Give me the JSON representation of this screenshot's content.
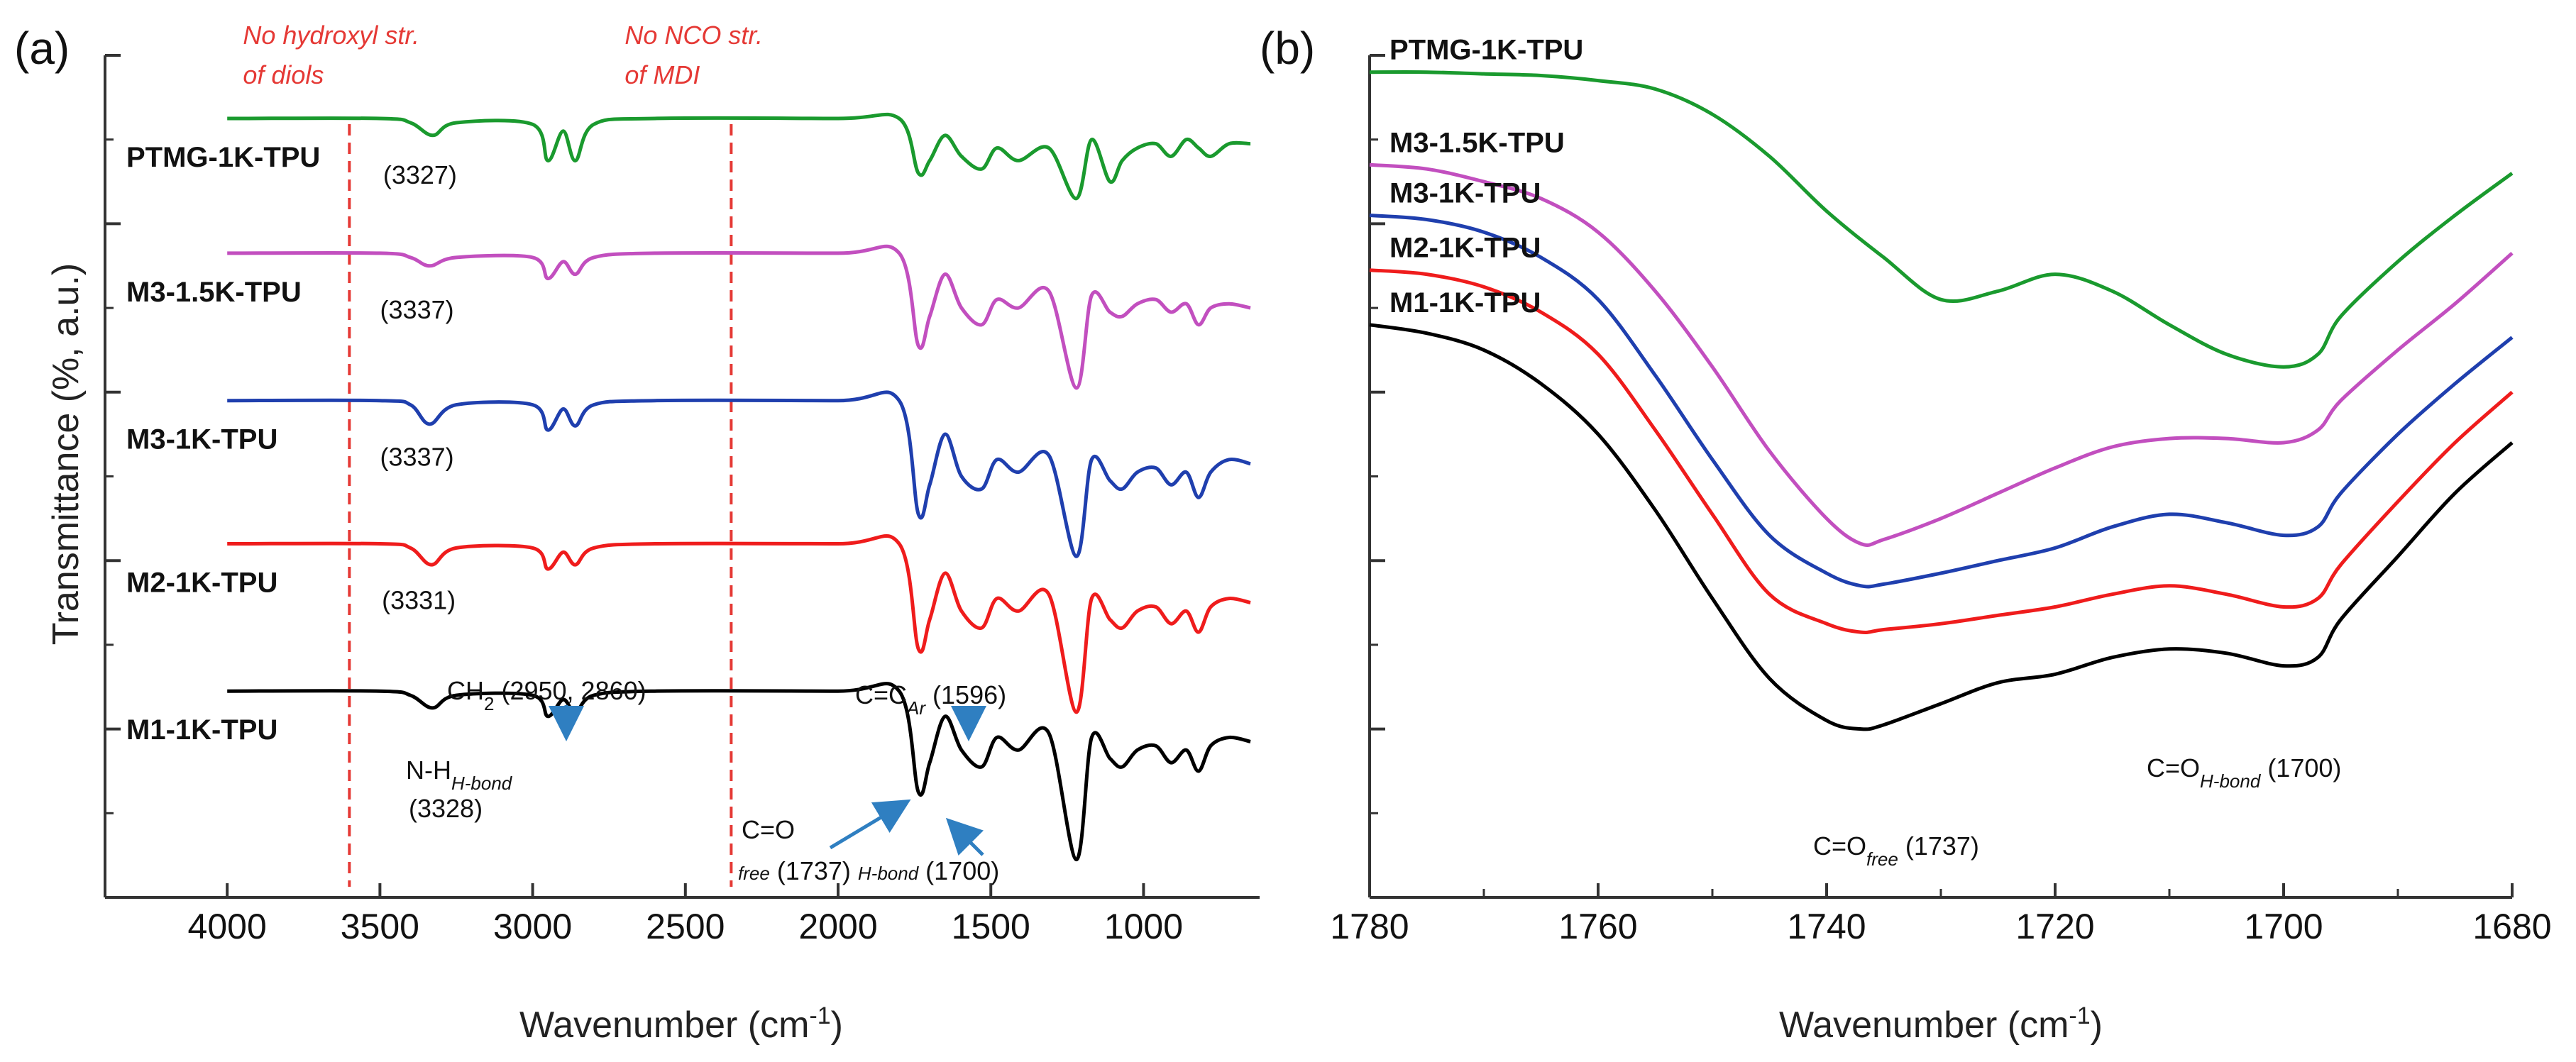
{
  "colors": {
    "PTMG-1K-TPU": "#1a9a2e",
    "M3-1.5K-TPU": "#c24fbf",
    "M3-1K-TPU": "#1f3fae",
    "M2-1K-TPU": "#ef1c1c",
    "M1-1K-TPU": "#000000",
    "guide": "#e53935",
    "arrow": "#2f7fc1"
  },
  "chart_data": [
    {
      "panel": "(a)",
      "type": "line",
      "title": "",
      "xlabel": "Wavenumber (cm",
      "xlabel_sup": "-1",
      "xlabel_end": ")",
      "ylabel": "Transmittance (%, a.u.)",
      "xlim": [
        4400,
        620
      ],
      "ylim": [
        0,
        10
      ],
      "xticks": [
        4000,
        3500,
        3000,
        2500,
        2000,
        1500,
        1000
      ],
      "guides": [
        {
          "x": 3600,
          "label1": "No hydroxyl str.",
          "label2": "of diols"
        },
        {
          "x": 2350,
          "label1": "No NCO str.",
          "label2": "of MDI"
        }
      ],
      "series": [
        {
          "name": "PTMG-1K-TPU",
          "offset": 9.25,
          "peak_label": "(3327)",
          "x": [
            4000,
            3500,
            3400,
            3327,
            3250,
            3000,
            2950,
            2900,
            2860,
            2800,
            2600,
            2000,
            1800,
            1737,
            1700,
            1650,
            1596,
            1530,
            1480,
            1410,
            1310,
            1220,
            1170,
            1110,
            1070,
            1020,
            960,
            910,
            860,
            820,
            780,
            720,
            650
          ],
          "y": [
            9.25,
            9.25,
            9.2,
            9.05,
            9.2,
            9.18,
            8.75,
            9.1,
            8.75,
            9.18,
            9.25,
            9.25,
            9.25,
            8.6,
            8.75,
            9.05,
            8.8,
            8.65,
            8.9,
            8.75,
            8.9,
            8.3,
            9.0,
            8.5,
            8.75,
            8.9,
            8.95,
            8.8,
            9.0,
            8.9,
            8.8,
            8.95,
            8.95
          ]
        },
        {
          "name": "M3-1.5K-TPU",
          "offset": 7.65,
          "peak_label": "(3337)",
          "x": [
            4000,
            3500,
            3400,
            3337,
            3250,
            3000,
            2950,
            2900,
            2860,
            2800,
            2600,
            2000,
            1800,
            1737,
            1700,
            1650,
            1596,
            1530,
            1480,
            1410,
            1310,
            1220,
            1170,
            1110,
            1070,
            1020,
            960,
            910,
            860,
            820,
            780,
            720,
            650
          ],
          "y": [
            7.65,
            7.65,
            7.6,
            7.5,
            7.6,
            7.6,
            7.35,
            7.55,
            7.4,
            7.6,
            7.65,
            7.65,
            7.65,
            6.55,
            6.9,
            7.4,
            7.0,
            6.8,
            7.1,
            7.0,
            7.2,
            6.05,
            7.15,
            6.95,
            6.9,
            7.05,
            7.1,
            6.95,
            7.05,
            6.8,
            7.0,
            7.05,
            7.0
          ]
        },
        {
          "name": "M3-1K-TPU",
          "offset": 5.9,
          "peak_label": "(3337)",
          "x": [
            4000,
            3500,
            3400,
            3337,
            3250,
            3000,
            2950,
            2900,
            2860,
            2800,
            2600,
            2000,
            1800,
            1737,
            1700,
            1650,
            1596,
            1530,
            1480,
            1410,
            1310,
            1220,
            1170,
            1110,
            1070,
            1020,
            960,
            910,
            860,
            820,
            780,
            720,
            650
          ],
          "y": [
            5.9,
            5.9,
            5.85,
            5.62,
            5.85,
            5.85,
            5.55,
            5.8,
            5.6,
            5.85,
            5.9,
            5.9,
            5.9,
            4.55,
            4.9,
            5.5,
            5.0,
            4.85,
            5.2,
            5.05,
            5.25,
            4.05,
            5.2,
            4.95,
            4.85,
            5.05,
            5.1,
            4.9,
            5.05,
            4.75,
            5.05,
            5.2,
            5.15
          ]
        },
        {
          "name": "M2-1K-TPU",
          "offset": 4.2,
          "peak_label": "(3331)",
          "x": [
            4000,
            3500,
            3400,
            3331,
            3250,
            3000,
            2950,
            2900,
            2860,
            2800,
            2600,
            2000,
            1800,
            1737,
            1700,
            1650,
            1596,
            1530,
            1480,
            1410,
            1310,
            1220,
            1170,
            1110,
            1070,
            1020,
            960,
            910,
            860,
            820,
            780,
            720,
            650
          ],
          "y": [
            4.2,
            4.2,
            4.15,
            3.95,
            4.15,
            4.15,
            3.9,
            4.1,
            3.95,
            4.15,
            4.2,
            4.2,
            4.2,
            2.95,
            3.3,
            3.85,
            3.4,
            3.2,
            3.55,
            3.4,
            3.6,
            2.2,
            3.55,
            3.3,
            3.2,
            3.4,
            3.45,
            3.25,
            3.4,
            3.15,
            3.45,
            3.55,
            3.5
          ]
        },
        {
          "name": "M1-1K-TPU",
          "offset": 2.45,
          "peak_label": "(3328)",
          "x": [
            4000,
            3500,
            3400,
            3328,
            3250,
            3000,
            2950,
            2900,
            2860,
            2800,
            2600,
            2000,
            1800,
            1737,
            1700,
            1650,
            1596,
            1530,
            1480,
            1410,
            1310,
            1220,
            1170,
            1110,
            1070,
            1020,
            960,
            910,
            860,
            820,
            780,
            720,
            650
          ],
          "y": [
            2.45,
            2.45,
            2.4,
            2.25,
            2.4,
            2.4,
            2.15,
            2.35,
            2.2,
            2.4,
            2.45,
            2.45,
            2.45,
            1.25,
            1.6,
            2.15,
            1.75,
            1.55,
            1.9,
            1.75,
            1.95,
            0.45,
            1.9,
            1.65,
            1.55,
            1.75,
            1.8,
            1.6,
            1.75,
            1.5,
            1.8,
            1.9,
            1.85
          ]
        }
      ],
      "annotations": {
        "ch2_label": "CH",
        "ch2_sub": "2",
        "ch2_values": " (2950, 2860)",
        "nh_label": "N-H",
        "nh_sub": "H-bond",
        "nh_value": "(3328)",
        "cc_label": "C=C",
        "cc_sub": "Ar",
        "cc_value": " (1596)",
        "co_label": "C=O",
        "co_free_sub": "free",
        "co_free_value": " (1737) ",
        "co_hb_sub": "H-bond",
        "co_hb_value": " (1700)"
      }
    },
    {
      "panel": "(b)",
      "type": "line",
      "title": "",
      "xlabel": "Wavenumber (cm",
      "xlabel_sup": "-1",
      "xlabel_end": ")",
      "ylabel": "",
      "xlim": [
        1780,
        1680
      ],
      "ylim": [
        0,
        10
      ],
      "xticks": [
        1780,
        1760,
        1740,
        1720,
        1700,
        1680
      ],
      "series": [
        {
          "name": "PTMG-1K-TPU",
          "x": [
            1780,
            1775,
            1770,
            1765,
            1760,
            1755,
            1750,
            1745,
            1740,
            1735,
            1730,
            1725,
            1720,
            1715,
            1710,
            1705,
            1700,
            1697,
            1695,
            1690,
            1685,
            1680
          ],
          "y": [
            9.8,
            9.8,
            9.78,
            9.76,
            9.7,
            9.6,
            9.3,
            8.8,
            8.15,
            7.6,
            7.1,
            7.2,
            7.4,
            7.2,
            6.8,
            6.45,
            6.3,
            6.45,
            6.9,
            7.55,
            8.1,
            8.6
          ]
        },
        {
          "name": "M3-1.5K-TPU",
          "x": [
            1780,
            1775,
            1770,
            1765,
            1760,
            1755,
            1750,
            1745,
            1740,
            1737,
            1735,
            1730,
            1725,
            1720,
            1715,
            1710,
            1705,
            1700,
            1697,
            1695,
            1690,
            1685,
            1680
          ],
          "y": [
            8.7,
            8.65,
            8.5,
            8.3,
            7.9,
            7.2,
            6.3,
            5.3,
            4.5,
            4.2,
            4.25,
            4.5,
            4.8,
            5.1,
            5.35,
            5.45,
            5.45,
            5.4,
            5.55,
            5.9,
            6.5,
            7.05,
            7.65
          ]
        },
        {
          "name": "M3-1K-TPU",
          "x": [
            1780,
            1775,
            1770,
            1765,
            1760,
            1755,
            1750,
            1745,
            1740,
            1737,
            1735,
            1730,
            1725,
            1720,
            1715,
            1710,
            1705,
            1700,
            1697,
            1695,
            1690,
            1685,
            1680
          ],
          "y": [
            8.1,
            8.05,
            7.9,
            7.6,
            7.1,
            6.2,
            5.2,
            4.3,
            3.85,
            3.7,
            3.72,
            3.85,
            4.0,
            4.15,
            4.4,
            4.55,
            4.45,
            4.3,
            4.4,
            4.8,
            5.5,
            6.1,
            6.65
          ]
        },
        {
          "name": "M2-1K-TPU",
          "x": [
            1780,
            1775,
            1770,
            1765,
            1760,
            1755,
            1750,
            1745,
            1740,
            1737,
            1735,
            1730,
            1725,
            1720,
            1715,
            1710,
            1705,
            1700,
            1697,
            1695,
            1690,
            1685,
            1680
          ],
          "y": [
            7.45,
            7.4,
            7.25,
            6.95,
            6.45,
            5.55,
            4.55,
            3.6,
            3.25,
            3.15,
            3.18,
            3.25,
            3.35,
            3.45,
            3.6,
            3.7,
            3.6,
            3.45,
            3.55,
            3.95,
            4.7,
            5.4,
            6.0
          ]
        },
        {
          "name": "M1-1K-TPU",
          "x": [
            1780,
            1775,
            1770,
            1765,
            1760,
            1755,
            1750,
            1745,
            1740,
            1737,
            1735,
            1730,
            1725,
            1720,
            1715,
            1710,
            1705,
            1700,
            1697,
            1695,
            1690,
            1685,
            1680
          ],
          "y": [
            6.8,
            6.7,
            6.5,
            6.1,
            5.5,
            4.6,
            3.55,
            2.6,
            2.1,
            2.0,
            2.05,
            2.3,
            2.55,
            2.65,
            2.85,
            2.95,
            2.9,
            2.75,
            2.85,
            3.3,
            4.05,
            4.8,
            5.4
          ]
        }
      ],
      "series_labels": [
        "PTMG-1K-TPU",
        "M3-1.5K-TPU",
        "M3-1K-TPU",
        "M2-1K-TPU",
        "M1-1K-TPU"
      ],
      "annotations": {
        "co_free_label": "C=O",
        "co_free_sub": "free",
        "co_free_value": " (1737)",
        "co_hb_label": "C=O",
        "co_hb_sub": "H-bond",
        "co_hb_value": " (1700)"
      }
    }
  ]
}
